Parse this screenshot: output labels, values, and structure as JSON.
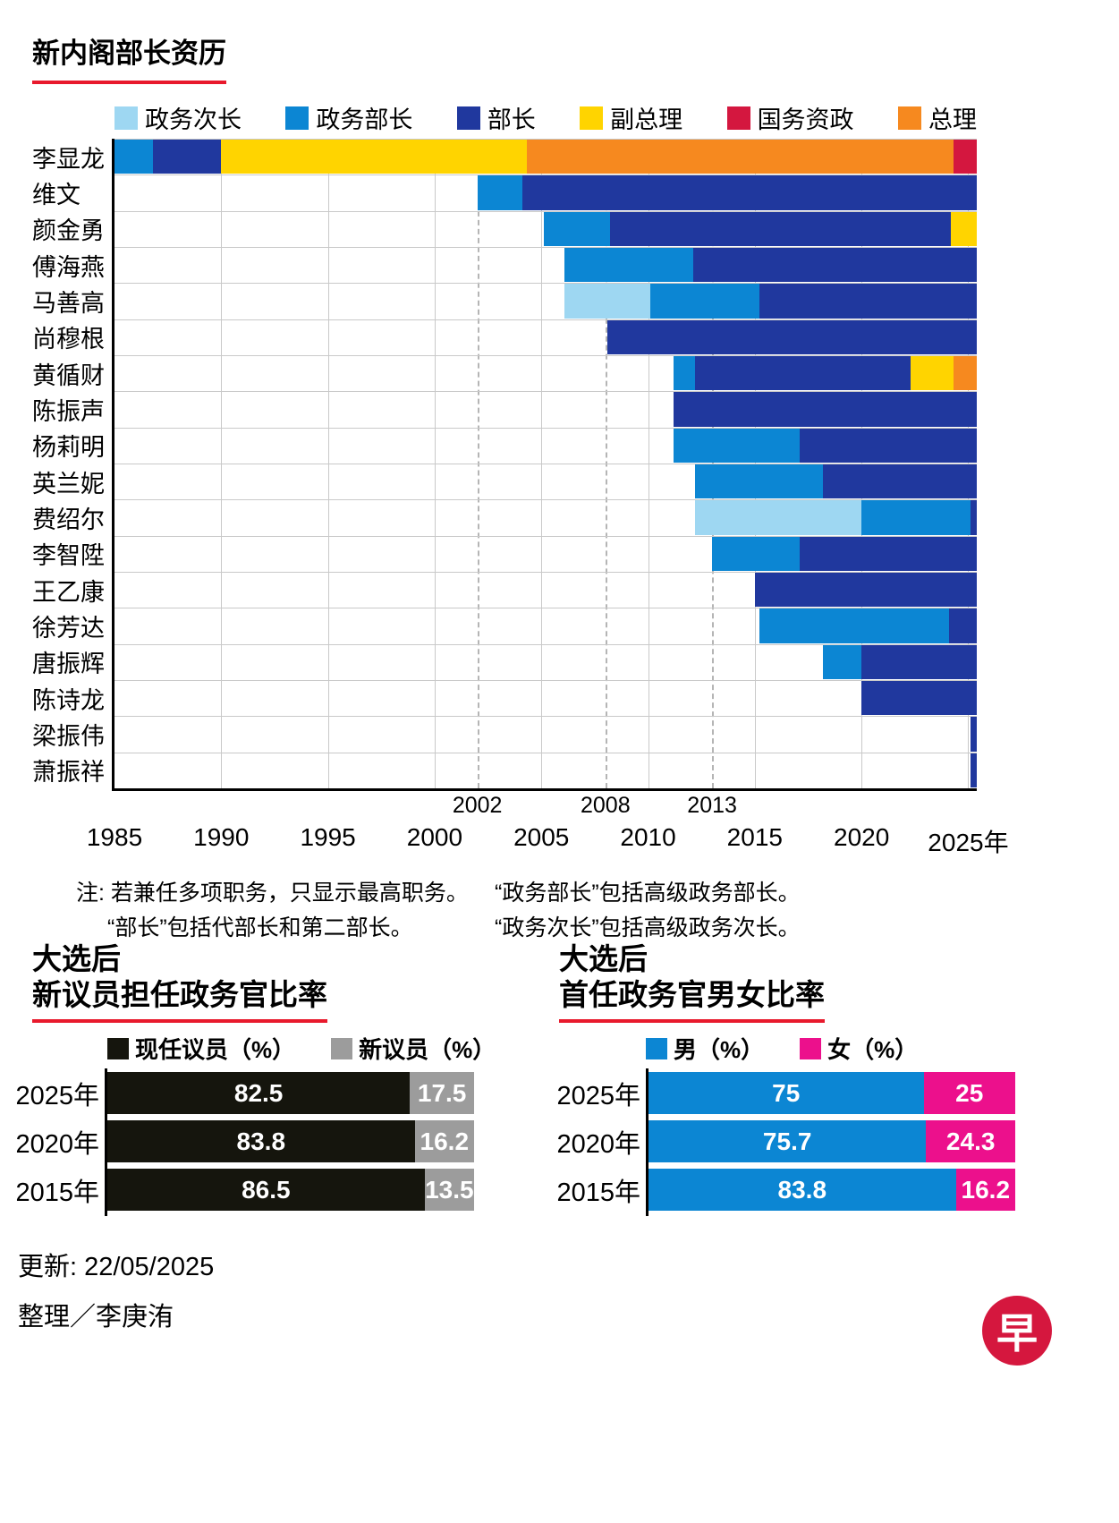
{
  "page": {
    "title": "新内阁部长资历",
    "footer": {
      "updated": "更新: 22/05/2025",
      "credit": "整理／李庚洧",
      "logo_char": "早"
    }
  },
  "colors": {
    "accent_red": "#e8192c",
    "parl_sec": "#9ed7f2",
    "minister_state": "#0c86d3",
    "minister": "#20389e",
    "dpm": "#ffd400",
    "senior_minister": "#d4173f",
    "pm": "#f6891f",
    "incumbent_black": "#15150d",
    "new_gray": "#9c9c9c",
    "male_blue": "#0c86d3",
    "female_pink": "#ec108c"
  },
  "chart_data": [
    {
      "type": "gantt",
      "title": "新内阁部长资历",
      "x_axis": {
        "min": 1985,
        "max": 2025.4,
        "major_ticks": [
          1985,
          1990,
          1995,
          2000,
          2005,
          2010,
          2015,
          2020,
          2025
        ],
        "major_tick_labels": [
          "1985",
          "1990",
          "1995",
          "2000",
          "2005",
          "2010",
          "2015",
          "2020",
          "2025年"
        ],
        "dashed_ticks": [
          2002,
          2008,
          2013
        ],
        "dashed_tick_labels": [
          "2002",
          "2008",
          "2013"
        ]
      },
      "legend": [
        {
          "label": "政务次长",
          "color_key": "parl_sec"
        },
        {
          "label": "政务部长",
          "color_key": "minister_state"
        },
        {
          "label": "部长",
          "color_key": "minister"
        },
        {
          "label": "副总理",
          "color_key": "dpm"
        },
        {
          "label": "国务资政",
          "color_key": "senior_minister"
        },
        {
          "label": "总理",
          "color_key": "pm"
        }
      ],
      "rows": [
        {
          "name": "李显龙",
          "segments": [
            [
              "minister_state",
              1985,
              1986.8
            ],
            [
              "minister",
              1986.8,
              1990
            ],
            [
              "dpm",
              1990,
              2004.3
            ],
            [
              "pm",
              2004.3,
              2024.3
            ],
            [
              "senior_minister",
              2024.3,
              2025.4
            ]
          ]
        },
        {
          "name": "维文",
          "segments": [
            [
              "minister_state",
              2002,
              2004.1
            ],
            [
              "minister",
              2004.1,
              2025.4
            ]
          ]
        },
        {
          "name": "颜金勇",
          "segments": [
            [
              "minister_state",
              2005.1,
              2008.2
            ],
            [
              "minister",
              2008.2,
              2024.2
            ],
            [
              "dpm",
              2024.2,
              2025.4
            ]
          ]
        },
        {
          "name": "傅海燕",
          "segments": [
            [
              "minister_state",
              2006.1,
              2012.1
            ],
            [
              "minister",
              2012.1,
              2025.4
            ]
          ]
        },
        {
          "name": "马善高",
          "segments": [
            [
              "parl_sec",
              2006.1,
              2010.1
            ],
            [
              "minister_state",
              2010.1,
              2015.2
            ],
            [
              "minister",
              2015.2,
              2025.4
            ]
          ]
        },
        {
          "name": "尚穆根",
          "segments": [
            [
              "minister",
              2008.1,
              2025.4
            ]
          ]
        },
        {
          "name": "黄循财",
          "segments": [
            [
              "minister_state",
              2011.2,
              2012.2
            ],
            [
              "minister",
              2012.2,
              2022.3
            ],
            [
              "dpm",
              2022.3,
              2024.3
            ],
            [
              "pm",
              2024.3,
              2025.4
            ]
          ]
        },
        {
          "name": "陈振声",
          "segments": [
            [
              "minister",
              2011.2,
              2025.4
            ]
          ]
        },
        {
          "name": "杨莉明",
          "segments": [
            [
              "minister_state",
              2011.2,
              2017.1
            ],
            [
              "minister",
              2017.1,
              2025.4
            ]
          ]
        },
        {
          "name": "英兰妮",
          "segments": [
            [
              "minister_state",
              2012.2,
              2018.2
            ],
            [
              "minister",
              2018.2,
              2025.4
            ]
          ]
        },
        {
          "name": "费绍尔",
          "segments": [
            [
              "parl_sec",
              2012.2,
              2020
            ],
            [
              "minister_state",
              2020,
              2025.1
            ],
            [
              "minister",
              2025.1,
              2025.4
            ]
          ]
        },
        {
          "name": "李智陞",
          "segments": [
            [
              "minister_state",
              2013,
              2017.1
            ],
            [
              "minister",
              2017.1,
              2025.4
            ]
          ]
        },
        {
          "name": "王乙康",
          "segments": [
            [
              "minister",
              2015,
              2025.4
            ]
          ]
        },
        {
          "name": "徐芳达",
          "segments": [
            [
              "minister_state",
              2015.2,
              2024.1
            ],
            [
              "minister",
              2024.1,
              2025.4
            ]
          ]
        },
        {
          "name": "唐振辉",
          "segments": [
            [
              "minister_state",
              2018.2,
              2020
            ],
            [
              "minister",
              2020,
              2025.4
            ]
          ]
        },
        {
          "name": "陈诗龙",
          "segments": [
            [
              "minister",
              2020,
              2025.4
            ]
          ]
        },
        {
          "name": "梁振伟",
          "segments": [
            [
              "minister",
              2025.1,
              2025.4
            ]
          ]
        },
        {
          "name": "萧振祥",
          "segments": [
            [
              "minister",
              2025.1,
              2025.4
            ]
          ]
        }
      ],
      "notes": [
        "注: 若兼任多项职务，只显示最高职务。",
        "“政务部长”包括高级政务部长。",
        "“部长”包括代部长和第二部长。",
        "“政务次长”包括高级政务次长。"
      ]
    },
    {
      "type": "bar",
      "title_lines": [
        "大选后",
        "新议员担任政务官比率"
      ],
      "legend": [
        {
          "label": "现任议员（%）",
          "color_key": "incumbent_black"
        },
        {
          "label": "新议员（%）",
          "color_key": "new_gray"
        }
      ],
      "rows": [
        {
          "label": "2025年",
          "segments": [
            {
              "value": 82.5,
              "text": "82.5",
              "color_key": "incumbent_black"
            },
            {
              "value": 17.5,
              "text": "17.5",
              "color_key": "new_gray"
            }
          ]
        },
        {
          "label": "2020年",
          "segments": [
            {
              "value": 83.8,
              "text": "83.8",
              "color_key": "incumbent_black"
            },
            {
              "value": 16.2,
              "text": "16.2",
              "color_key": "new_gray"
            }
          ]
        },
        {
          "label": "2015年",
          "segments": [
            {
              "value": 86.5,
              "text": "86.5",
              "color_key": "incumbent_black"
            },
            {
              "value": 13.5,
              "text": "13.5",
              "color_key": "new_gray"
            }
          ]
        }
      ]
    },
    {
      "type": "bar",
      "title_lines": [
        "大选后",
        "首任政务官男女比率"
      ],
      "legend": [
        {
          "label": "男（%）",
          "color_key": "male_blue"
        },
        {
          "label": "女（%）",
          "color_key": "female_pink"
        }
      ],
      "rows": [
        {
          "label": "2025年",
          "segments": [
            {
              "value": 75,
              "text": "75",
              "color_key": "male_blue"
            },
            {
              "value": 25,
              "text": "25",
              "color_key": "female_pink"
            }
          ]
        },
        {
          "label": "2020年",
          "segments": [
            {
              "value": 75.7,
              "text": "75.7",
              "color_key": "male_blue"
            },
            {
              "value": 24.3,
              "text": "24.3",
              "color_key": "female_pink"
            }
          ]
        },
        {
          "label": "2015年",
          "segments": [
            {
              "value": 83.8,
              "text": "83.8",
              "color_key": "male_blue"
            },
            {
              "value": 16.2,
              "text": "16.2",
              "color_key": "female_pink"
            }
          ]
        }
      ]
    }
  ]
}
